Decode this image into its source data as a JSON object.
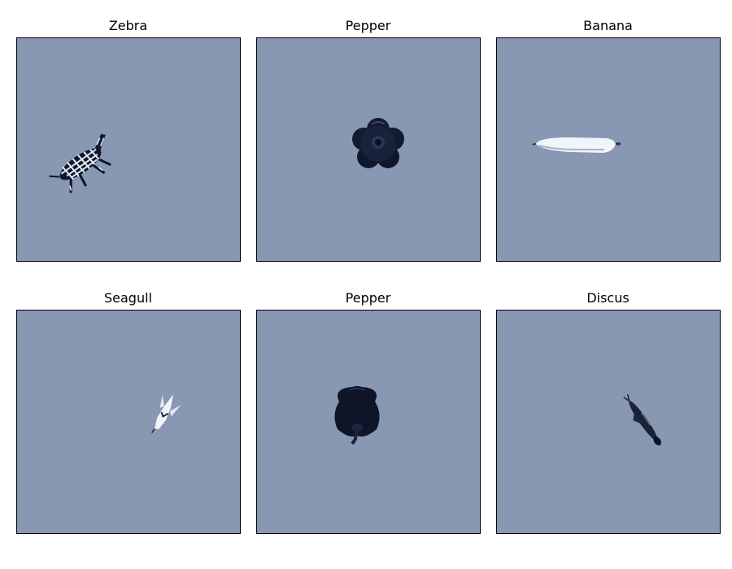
{
  "colors": {
    "panel_background": "#8898b3",
    "figure_background": "#ffffff",
    "object_dark": "#0e1628",
    "object_light": "#eef2fa"
  },
  "panels": [
    {
      "title": "Zebra"
    },
    {
      "title": "Pepper"
    },
    {
      "title": "Banana"
    },
    {
      "title": "Seagull"
    },
    {
      "title": "Pepper"
    },
    {
      "title": "Discus"
    }
  ]
}
